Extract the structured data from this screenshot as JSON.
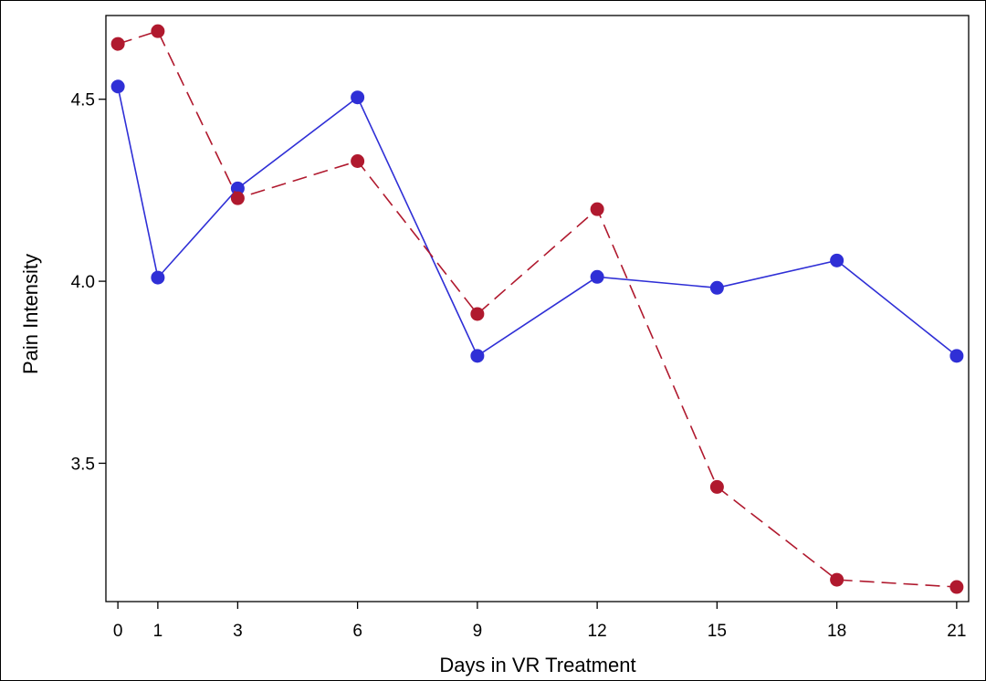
{
  "chart_data": {
    "type": "line",
    "title": "",
    "xlabel": "Days in VR Treatment",
    "ylabel": "Pain Intensity",
    "x": [
      0,
      1,
      3,
      6,
      9,
      12,
      15,
      18,
      21
    ],
    "xticks": [
      "0",
      "1",
      "3",
      "6",
      "9",
      "12",
      "15",
      "18",
      "21"
    ],
    "yticks": [
      {
        "value": 3.5,
        "label": "3.5"
      },
      {
        "value": 4.0,
        "label": "4.0"
      },
      {
        "value": 4.5,
        "label": "4.5"
      }
    ],
    "xlim": [
      -0.3,
      21.3
    ],
    "ylim": [
      3.12,
      4.73
    ],
    "grid": false,
    "legend": "none",
    "series": [
      {
        "color": "#2f2fd6",
        "line_style": "solid",
        "values": [
          4.535,
          4.01,
          4.255,
          4.505,
          3.795,
          4.012,
          3.982,
          4.057,
          3.795
        ]
      },
      {
        "color": "#b0192e",
        "line_style": "dashed",
        "values": [
          4.652,
          4.687,
          4.228,
          4.33,
          3.91,
          4.198,
          3.435,
          3.18,
          3.16
        ]
      }
    ]
  }
}
